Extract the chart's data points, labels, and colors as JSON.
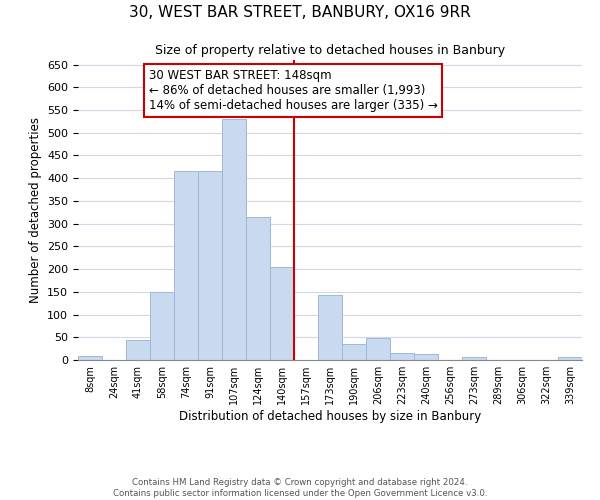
{
  "title": "30, WEST BAR STREET, BANBURY, OX16 9RR",
  "subtitle": "Size of property relative to detached houses in Banbury",
  "xlabel": "Distribution of detached houses by size in Banbury",
  "ylabel": "Number of detached properties",
  "bin_labels": [
    "8sqm",
    "24sqm",
    "41sqm",
    "58sqm",
    "74sqm",
    "91sqm",
    "107sqm",
    "124sqm",
    "140sqm",
    "157sqm",
    "173sqm",
    "190sqm",
    "206sqm",
    "223sqm",
    "240sqm",
    "256sqm",
    "273sqm",
    "289sqm",
    "306sqm",
    "322sqm",
    "339sqm"
  ],
  "bar_heights": [
    8,
    0,
    44,
    150,
    416,
    416,
    530,
    315,
    205,
    0,
    143,
    35,
    49,
    15,
    14,
    0,
    7,
    0,
    0,
    0,
    7
  ],
  "bar_color": "#c9d9f0",
  "bar_edge_color": "#a0b8d8",
  "vline_x_index": 8.5,
  "vline_color": "#cc0000",
  "annotation_text": "30 WEST BAR STREET: 148sqm\n← 86% of detached houses are smaller (1,993)\n14% of semi-detached houses are larger (335) →",
  "annotation_box_color": "#ffffff",
  "annotation_box_edge": "#cc0000",
  "ylim": [
    0,
    660
  ],
  "yticks": [
    0,
    50,
    100,
    150,
    200,
    250,
    300,
    350,
    400,
    450,
    500,
    550,
    600,
    650
  ],
  "footnote1": "Contains HM Land Registry data © Crown copyright and database right 2024.",
  "footnote2": "Contains public sector information licensed under the Open Government Licence v3.0.",
  "bg_color": "#ffffff",
  "grid_color": "#d0d8e8"
}
